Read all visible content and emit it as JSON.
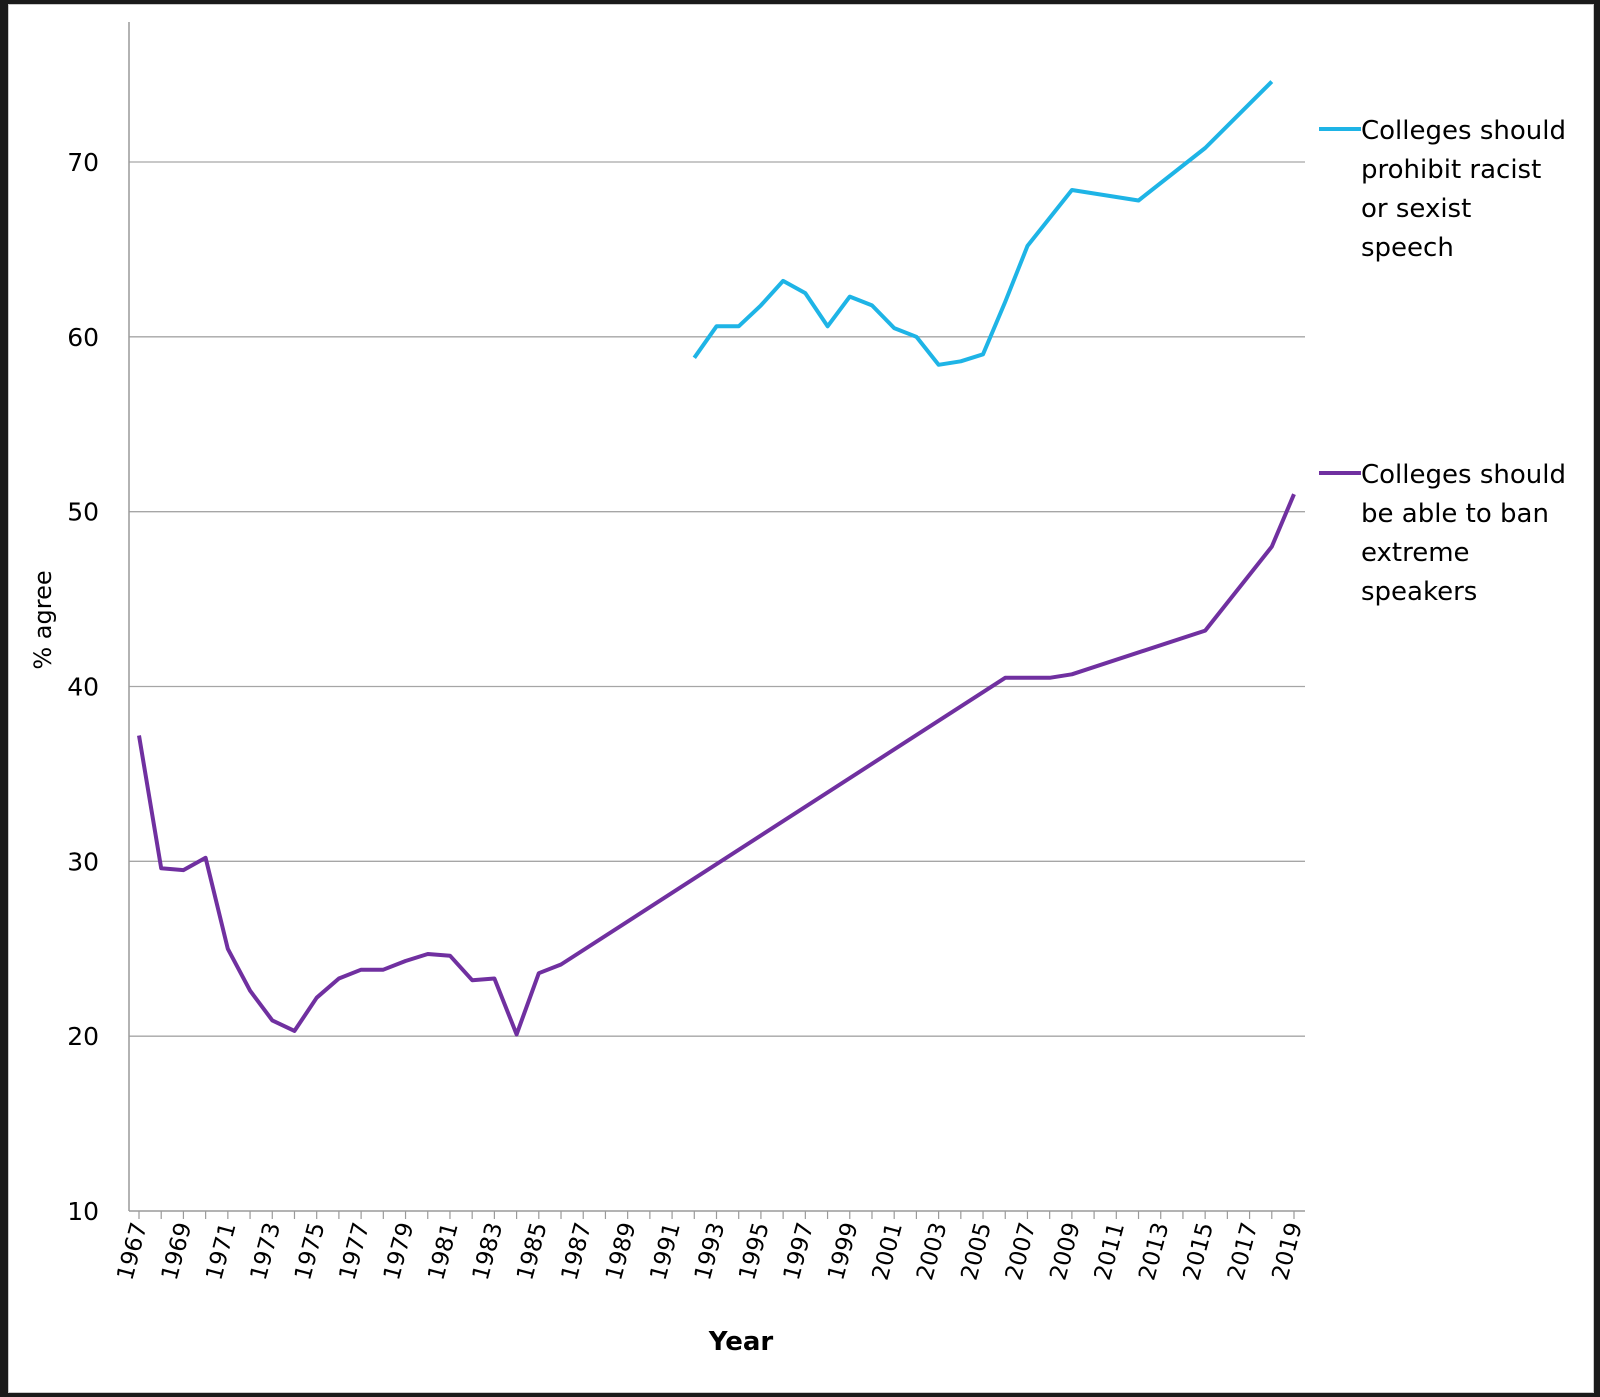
{
  "chart_data": {
    "type": "line",
    "xlabel": "Year",
    "ylabel": "% agree",
    "ylim": [
      10,
      75
    ],
    "xlim": [
      1967,
      2019
    ],
    "yticks": [
      10,
      20,
      30,
      40,
      50,
      60,
      70
    ],
    "ygridlines": [
      20,
      30,
      40,
      50,
      60,
      70
    ],
    "xticks": [
      1967,
      1969,
      1971,
      1973,
      1975,
      1977,
      1979,
      1981,
      1983,
      1985,
      1987,
      1989,
      1991,
      1993,
      1995,
      1997,
      1999,
      2001,
      2003,
      2005,
      2007,
      2009,
      2011,
      2013,
      2015,
      2017,
      2019
    ],
    "grid": "horizontal",
    "legend_position": "right",
    "series": [
      {
        "name": "Colleges should prohibit racist or sexist speech",
        "legend_lines": [
          "Colleges should",
          "prohibit racist",
          "or sexist",
          "speech"
        ],
        "color": "#1eb4e6",
        "points": [
          [
            1992,
            58.8
          ],
          [
            1993,
            60.6
          ],
          [
            1994,
            60.6
          ],
          [
            1995,
            61.8
          ],
          [
            1996,
            63.2
          ],
          [
            1997,
            62.5
          ],
          [
            1998,
            60.6
          ],
          [
            1999,
            62.3
          ],
          [
            2000,
            61.8
          ],
          [
            2001,
            60.5
          ],
          [
            2002,
            60.0
          ],
          [
            2003,
            58.4
          ],
          [
            2004,
            58.6
          ],
          [
            2005,
            59.0
          ],
          [
            2006,
            62.0
          ],
          [
            2007,
            65.2
          ],
          [
            2009,
            68.4
          ],
          [
            2012,
            67.8
          ],
          [
            2015,
            70.8
          ],
          [
            2018,
            74.6
          ]
        ]
      },
      {
        "name": "Colleges should be able to ban extreme speakers",
        "legend_lines": [
          "Colleges should",
          "be able to ban",
          "extreme",
          "speakers"
        ],
        "color": "#7030a0",
        "points": [
          [
            1967,
            37.2
          ],
          [
            1968,
            29.6
          ],
          [
            1969,
            29.5
          ],
          [
            1970,
            30.2
          ],
          [
            1971,
            25.0
          ],
          [
            1972,
            22.6
          ],
          [
            1973,
            20.9
          ],
          [
            1974,
            20.3
          ],
          [
            1975,
            22.2
          ],
          [
            1976,
            23.3
          ],
          [
            1977,
            23.8
          ],
          [
            1978,
            23.8
          ],
          [
            1979,
            24.3
          ],
          [
            1980,
            24.7
          ],
          [
            1981,
            24.6
          ],
          [
            1982,
            23.2
          ],
          [
            1983,
            23.3
          ],
          [
            1984,
            20.1
          ],
          [
            1985,
            23.6
          ],
          [
            1986,
            24.1
          ],
          [
            2006,
            40.5
          ],
          [
            2008,
            40.5
          ],
          [
            2009,
            40.7
          ],
          [
            2015,
            43.2
          ],
          [
            2018,
            48.0
          ],
          [
            2019,
            51.0
          ]
        ]
      }
    ]
  }
}
